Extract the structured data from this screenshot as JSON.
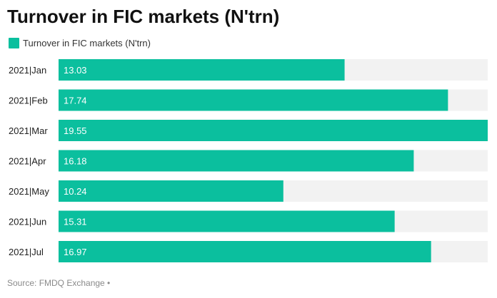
{
  "chart_data": {
    "type": "bar",
    "orientation": "horizontal",
    "title": "Turnover in FIC markets (N'trn)",
    "categories": [
      "2021|Jan",
      "2021|Feb",
      "2021|Mar",
      "2021|Apr",
      "2021|May",
      "2021|Jun",
      "2021|Jul"
    ],
    "series": [
      {
        "name": "Turnover in FIC markets (N'trn)",
        "values": [
          13.03,
          17.74,
          19.55,
          16.18,
          10.24,
          15.31,
          16.97
        ]
      }
    ],
    "value_labels": [
      "13.03",
      "17.74",
      "19.55",
      "16.18",
      "10.24",
      "15.31",
      "16.97"
    ],
    "xlim": [
      0,
      19.55
    ],
    "legend_position": "top-left",
    "grid": false,
    "colors": {
      "bar": "#0bbf9e",
      "track": "#f2f2f2",
      "value_label": "#ffffff"
    },
    "source": "Source: FMDQ Exchange •"
  }
}
